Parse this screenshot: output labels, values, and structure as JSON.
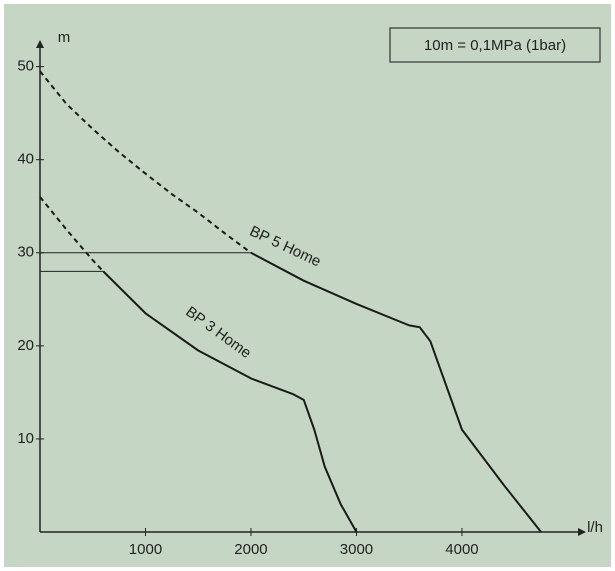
{
  "chart_data": {
    "type": "line",
    "y_label": "m",
    "x_label": "l/h",
    "note": "10m = 0,1MPa (1bar)",
    "xlim": [
      0,
      5100
    ],
    "ylim": [
      0,
      52
    ],
    "xticks": [
      1000,
      2000,
      3000,
      4000
    ],
    "yticks": [
      10,
      20,
      30,
      40,
      50
    ],
    "color": "#1a1a1a",
    "series": [
      {
        "name": "BP 5 Home",
        "dashed_until": 2000,
        "x": [
          0,
          250,
          500,
          750,
          1000,
          1250,
          1500,
          1750,
          2000,
          2500,
          3000,
          3500,
          3600,
          3700,
          4000,
          4400,
          4750
        ],
        "values": [
          49.5,
          46,
          43.3,
          40.8,
          38.5,
          36.3,
          34.3,
          32.1,
          30,
          27,
          24.5,
          22.2,
          22,
          20.5,
          11,
          5,
          0
        ]
      },
      {
        "name": "BP 3 Home",
        "dashed_until": 600,
        "x": [
          0,
          250,
          500,
          600,
          1000,
          1500,
          2000,
          2400,
          2500,
          2600,
          2700,
          2850,
          3000
        ],
        "values": [
          36,
          32.5,
          29.2,
          28,
          23.5,
          19.5,
          16.5,
          14.8,
          14.2,
          11,
          7,
          3,
          0
        ]
      }
    ],
    "reference_lines": [
      {
        "y": 30,
        "x_end": 2000
      },
      {
        "y": 28,
        "x_end": 600
      }
    ]
  }
}
